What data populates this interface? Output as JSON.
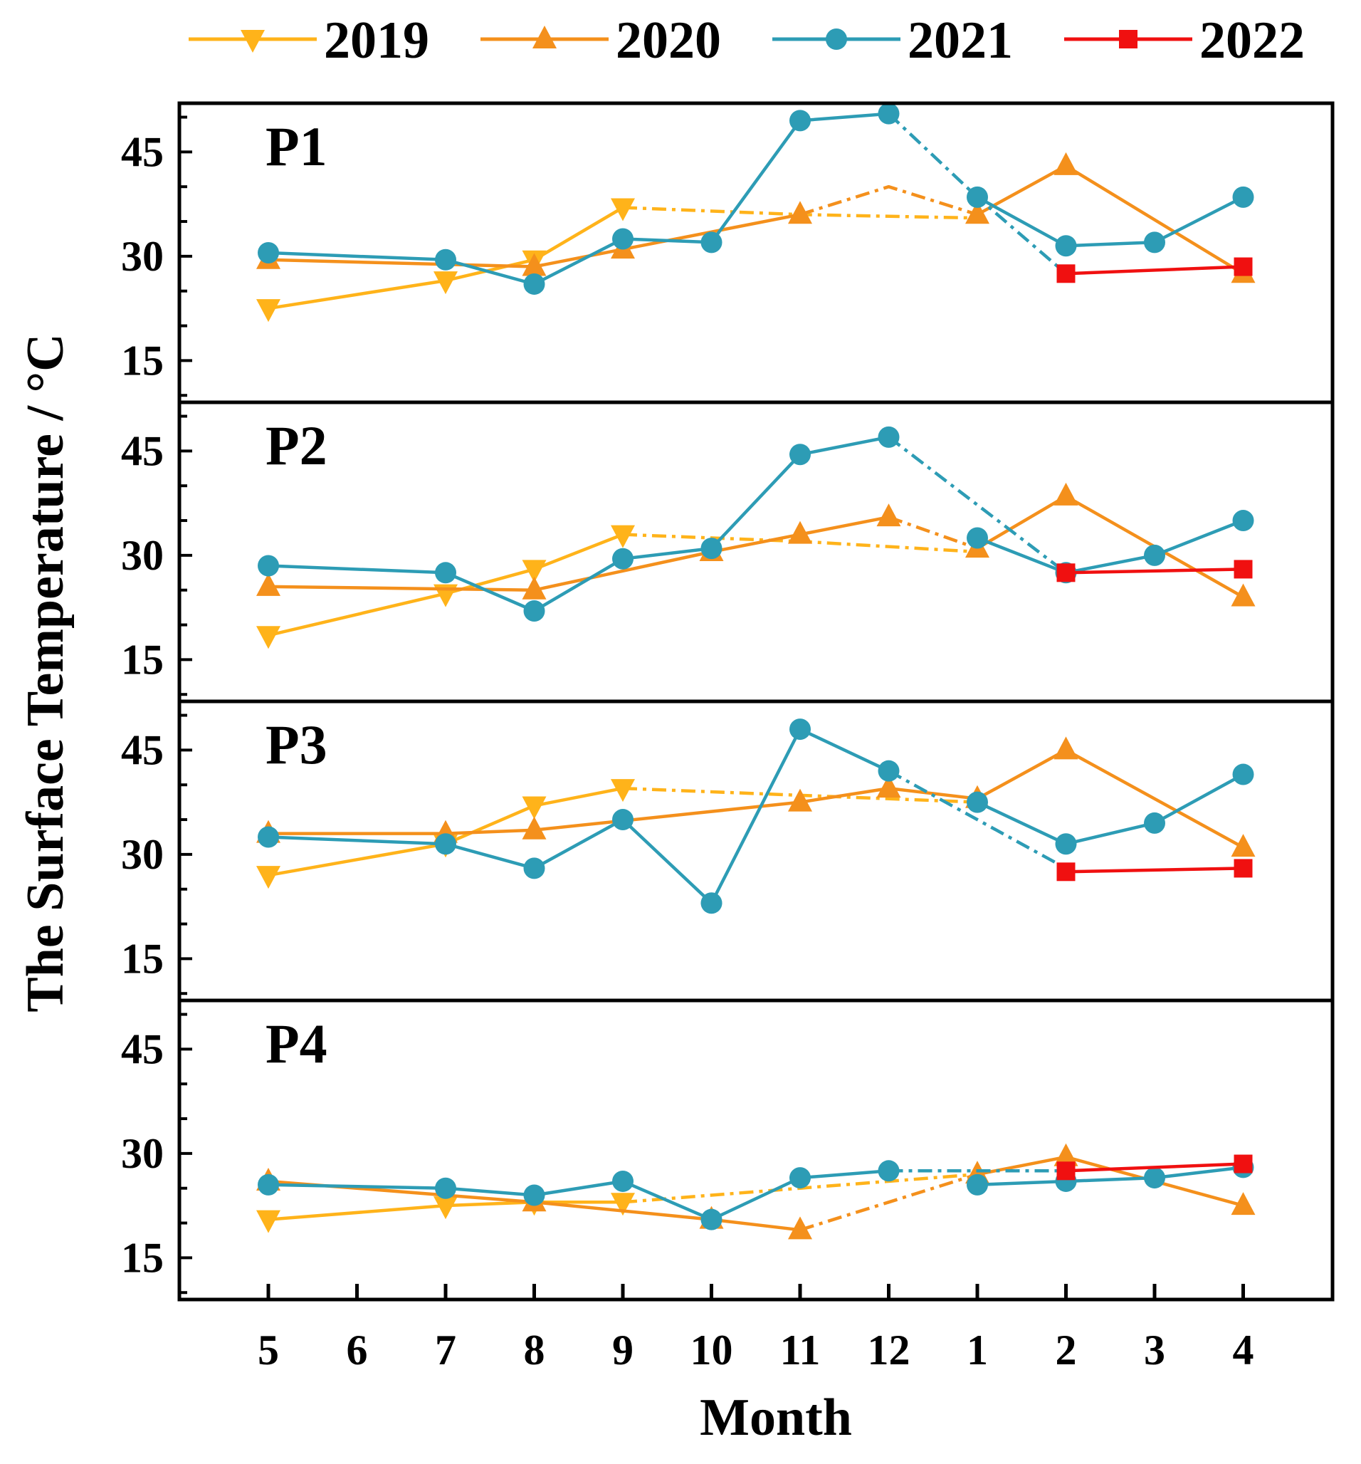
{
  "chart_data": {
    "type": "line",
    "xlabel": "Month",
    "ylabel": "The Surface Temperature / °C",
    "categories": [
      "5",
      "6",
      "7",
      "8",
      "9",
      "10",
      "11",
      "12",
      "1",
      "2",
      "3",
      "4"
    ],
    "ylim": [
      9,
      52
    ],
    "yticks": [
      "15",
      "30",
      "45"
    ],
    "legend": {
      "placement": "top",
      "entries": [
        {
          "name": "2019",
          "color": "#FFB31A",
          "marker": "triangle-down"
        },
        {
          "name": "2020",
          "color": "#F4901C",
          "marker": "triangle-up"
        },
        {
          "name": "2021",
          "color": "#2D9CB5",
          "marker": "circle"
        },
        {
          "name": "2022",
          "color": "#F01010",
          "marker": "square"
        }
      ]
    },
    "panels": [
      {
        "label": "P1",
        "series": [
          {
            "name": "2019",
            "points": [
              [
                "5",
                22.5
              ],
              [
                "7",
                26.5
              ],
              [
                "8",
                29.5
              ],
              [
                "9",
                37
              ]
            ],
            "dashed": [
              [
                "9",
                37
              ],
              [
                "11",
                36
              ],
              [
                "1",
                35.5
              ]
            ]
          },
          {
            "name": "2020",
            "points": [
              [
                "5",
                29.5
              ],
              [
                "8",
                28.5
              ],
              [
                "9",
                31
              ],
              [
                "11",
                36
              ]
            ],
            "dashed": [
              [
                "11",
                36
              ],
              [
                "12",
                40
              ],
              [
                "1",
                36
              ]
            ],
            "points2": [
              [
                "1",
                36
              ],
              [
                "2",
                43
              ],
              [
                "4",
                27.5
              ]
            ]
          },
          {
            "name": "2021",
            "points": [
              [
                "5",
                30.5
              ],
              [
                "7",
                29.5
              ],
              [
                "8",
                26
              ],
              [
                "9",
                32.5
              ],
              [
                "10",
                32
              ],
              [
                "11",
                49.5
              ],
              [
                "12",
                50.5
              ]
            ],
            "dashed": [
              [
                "12",
                50.5
              ],
              [
                "1",
                38.5
              ],
              [
                "2",
                27.5
              ]
            ],
            "points2": [
              [
                "1",
                38.5
              ],
              [
                "2",
                31.5
              ],
              [
                "3",
                32
              ],
              [
                "4",
                38.5
              ]
            ]
          },
          {
            "name": "2022",
            "points": [
              [
                "2",
                27.5
              ],
              [
                "4",
                28.5
              ]
            ]
          }
        ]
      },
      {
        "label": "P2",
        "series": [
          {
            "name": "2019",
            "points": [
              [
                "5",
                18.5
              ],
              [
                "7",
                24.5
              ],
              [
                "8",
                28
              ],
              [
                "9",
                33
              ]
            ],
            "dashed": [
              [
                "9",
                33
              ],
              [
                "11",
                32
              ],
              [
                "1",
                30.5
              ]
            ]
          },
          {
            "name": "2020",
            "points": [
              [
                "5",
                25.5
              ],
              [
                "8",
                25
              ],
              [
                "10",
                30.5
              ],
              [
                "11",
                33
              ],
              [
                "12",
                35.5
              ]
            ],
            "dashed": [
              [
                "12",
                35.5
              ],
              [
                "1",
                31
              ]
            ],
            "points2": [
              [
                "1",
                31
              ],
              [
                "2",
                38.5
              ],
              [
                "4",
                24
              ]
            ]
          },
          {
            "name": "2021",
            "points": [
              [
                "5",
                28.5
              ],
              [
                "7",
                27.5
              ],
              [
                "8",
                22
              ],
              [
                "9",
                29.5
              ],
              [
                "10",
                31
              ],
              [
                "11",
                44.5
              ],
              [
                "12",
                47
              ]
            ],
            "dashed": [
              [
                "12",
                47
              ],
              [
                "2",
                27.5
              ]
            ],
            "points2": [
              [
                "1",
                32.5
              ],
              [
                "2",
                27.5
              ],
              [
                "3",
                30
              ],
              [
                "4",
                35
              ]
            ]
          },
          {
            "name": "2022",
            "points": [
              [
                "2",
                27.5
              ],
              [
                "4",
                28
              ]
            ]
          }
        ]
      },
      {
        "label": "P3",
        "series": [
          {
            "name": "2019",
            "points": [
              [
                "5",
                27
              ],
              [
                "7",
                31.5
              ],
              [
                "8",
                37
              ],
              [
                "9",
                39.5
              ]
            ],
            "dashed": [
              [
                "9",
                39.5
              ],
              [
                "11",
                38.5
              ],
              [
                "1",
                37.5
              ]
            ]
          },
          {
            "name": "2020",
            "points": [
              [
                "5",
                33
              ],
              [
                "7",
                33
              ],
              [
                "8",
                33.5
              ],
              [
                "11",
                37.5
              ],
              [
                "12",
                39.5
              ],
              [
                "1",
                38
              ]
            ],
            "points2": [
              [
                "1",
                38
              ],
              [
                "2",
                45
              ],
              [
                "4",
                31
              ]
            ]
          },
          {
            "name": "2021",
            "points": [
              [
                "5",
                32.5
              ],
              [
                "7",
                31.5
              ],
              [
                "8",
                28
              ],
              [
                "9",
                35
              ],
              [
                "10",
                23
              ],
              [
                "11",
                48
              ],
              [
                "12",
                42
              ]
            ],
            "dashed": [
              [
                "12",
                42
              ],
              [
                "2",
                28
              ]
            ],
            "points2": [
              [
                "1",
                37.5
              ],
              [
                "2",
                31.5
              ],
              [
                "3",
                34.5
              ],
              [
                "4",
                41.5
              ]
            ]
          },
          {
            "name": "2022",
            "points": [
              [
                "2",
                27.5
              ],
              [
                "4",
                28
              ]
            ]
          }
        ]
      },
      {
        "label": "P4",
        "series": [
          {
            "name": "2019",
            "points": [
              [
                "5",
                20.5
              ],
              [
                "7",
                22.5
              ],
              [
                "8",
                23
              ],
              [
                "9",
                23
              ]
            ],
            "dashed": [
              [
                "9",
                23
              ],
              [
                "11",
                25
              ],
              [
                "1",
                27
              ]
            ]
          },
          {
            "name": "2020",
            "points": [
              [
                "5",
                26
              ],
              [
                "8",
                23
              ],
              [
                "10",
                20.5
              ],
              [
                "11",
                19
              ]
            ],
            "dashed": [
              [
                "11",
                19
              ],
              [
                "12",
                23
              ],
              [
                "1",
                27
              ]
            ],
            "points2": [
              [
                "1",
                27
              ],
              [
                "2",
                29.5
              ],
              [
                "4",
                22.5
              ]
            ]
          },
          {
            "name": "2021",
            "points": [
              [
                "5",
                25.5
              ],
              [
                "7",
                25
              ],
              [
                "8",
                24
              ],
              [
                "9",
                26
              ],
              [
                "10",
                20.5
              ],
              [
                "11",
                26.5
              ],
              [
                "12",
                27.5
              ]
            ],
            "dashed": [
              [
                "12",
                27.5
              ],
              [
                "2",
                27.5
              ]
            ],
            "points2": [
              [
                "1",
                25.5
              ],
              [
                "2",
                26
              ],
              [
                "3",
                26.5
              ],
              [
                "4",
                28
              ]
            ]
          },
          {
            "name": "2022",
            "points": [
              [
                "2",
                27.5
              ],
              [
                "4",
                28.5
              ]
            ]
          }
        ]
      }
    ]
  }
}
